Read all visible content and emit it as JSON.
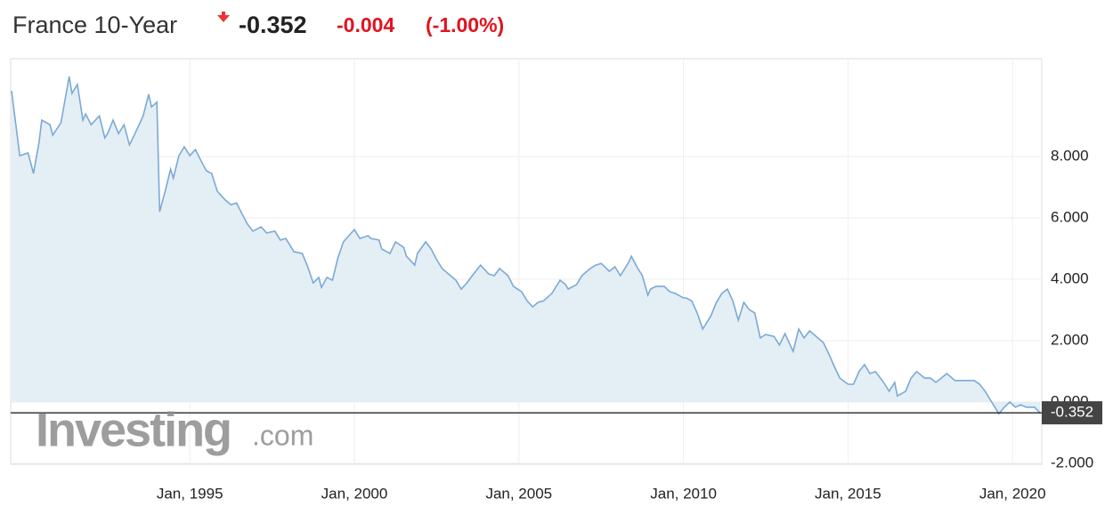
{
  "header": {
    "title": "France 10-Year",
    "price": "-0.352",
    "change": "-0.004",
    "change_percent": "(-1.00%)"
  },
  "watermark": {
    "brand": "Investing",
    "suffix": ".com"
  },
  "chart_data": {
    "type": "area-line",
    "x": [
      "1989-08",
      "1989-11",
      "1990-02",
      "1990-04",
      "1990-06",
      "1990-07",
      "1990-10",
      "1990-11",
      "1991-02",
      "1991-05",
      "1991-06",
      "1991-08",
      "1991-10",
      "1991-11",
      "1992-01",
      "1992-04",
      "1992-06",
      "1992-07",
      "1992-09",
      "1992-11",
      "1993-01",
      "1993-03",
      "1993-05",
      "1993-08",
      "1993-10",
      "1993-11",
      "1994-01",
      "1994-02",
      "1994-04",
      "1994-06",
      "1994-07",
      "1994-09",
      "1994-11",
      "1995-01",
      "1995-03",
      "1995-05",
      "1995-07",
      "1995-09",
      "1995-11",
      "1996-02",
      "1996-04",
      "1996-06",
      "1996-08",
      "1996-10",
      "1996-12",
      "1997-03",
      "1997-05",
      "1997-08",
      "1997-10",
      "1997-12",
      "1998-03",
      "1998-06",
      "1998-08",
      "1998-10",
      "1998-12",
      "1999-01",
      "1999-03",
      "1999-05",
      "1999-07",
      "1999-09",
      "1999-11",
      "2000-01",
      "2000-03",
      "2000-06",
      "2000-07",
      "2000-10",
      "2000-11",
      "2001-02",
      "2001-04",
      "2001-07",
      "2001-08",
      "2001-11",
      "2001-12",
      "2002-03",
      "2002-05",
      "2002-07",
      "2002-09",
      "2002-12",
      "2003-02",
      "2003-04",
      "2003-06",
      "2003-08",
      "2003-11",
      "2004-02",
      "2004-04",
      "2004-06",
      "2004-09",
      "2004-11",
      "2005-02",
      "2005-04",
      "2005-06",
      "2005-08",
      "2005-10",
      "2006-01",
      "2006-04",
      "2006-06",
      "2006-07",
      "2006-10",
      "2006-12",
      "2007-03",
      "2007-05",
      "2007-07",
      "2007-10",
      "2007-12",
      "2008-02",
      "2008-05",
      "2008-06",
      "2008-08",
      "2008-10",
      "2008-12",
      "2009-01",
      "2009-03",
      "2009-06",
      "2009-08",
      "2009-10",
      "2010-01",
      "2010-02",
      "2010-04",
      "2010-06",
      "2010-08",
      "2010-11",
      "2011-01",
      "2011-03",
      "2011-05",
      "2011-07",
      "2011-09",
      "2011-11",
      "2012-01",
      "2012-03",
      "2012-05",
      "2012-07",
      "2012-10",
      "2012-12",
      "2013-02",
      "2013-05",
      "2013-07",
      "2013-09",
      "2013-11",
      "2014-02",
      "2014-04",
      "2014-06",
      "2014-08",
      "2014-10",
      "2015-01",
      "2015-03",
      "2015-05",
      "2015-07",
      "2015-09",
      "2015-11",
      "2016-02",
      "2016-04",
      "2016-06",
      "2016-07",
      "2016-10",
      "2016-12",
      "2017-02",
      "2017-05",
      "2017-07",
      "2017-09",
      "2017-11",
      "2018-01",
      "2018-04",
      "2018-06",
      "2018-09",
      "2018-11",
      "2019-01",
      "2019-03",
      "2019-06",
      "2019-08",
      "2019-10",
      "2019-12",
      "2020-02",
      "2020-04",
      "2020-06",
      "2020-09",
      "2020-11"
    ],
    "series": [
      {
        "color": "#7aaad6",
        "fill": "#e4eef5",
        "values": [
          10.14,
          8.03,
          8.12,
          7.45,
          8.46,
          9.19,
          9.04,
          8.7,
          9.1,
          10.61,
          10.06,
          10.35,
          9.19,
          9.39,
          9.04,
          9.33,
          8.61,
          8.75,
          9.19,
          8.75,
          9.04,
          8.38,
          8.75,
          9.33,
          10.03,
          9.62,
          9.77,
          6.2,
          6.87,
          7.59,
          7.3,
          8.03,
          8.32,
          8.03,
          8.23,
          7.88,
          7.54,
          7.45,
          6.87,
          6.58,
          6.43,
          6.49,
          6.14,
          5.8,
          5.57,
          5.71,
          5.51,
          5.57,
          5.28,
          5.33,
          4.9,
          4.84,
          4.41,
          3.88,
          4.06,
          3.74,
          4.06,
          3.97,
          4.7,
          5.22,
          5.42,
          5.62,
          5.33,
          5.42,
          5.33,
          5.28,
          4.99,
          4.84,
          5.22,
          5.04,
          4.75,
          4.46,
          4.84,
          5.22,
          4.99,
          4.64,
          4.35,
          4.12,
          3.97,
          3.68,
          3.88,
          4.12,
          4.46,
          4.17,
          4.12,
          4.35,
          4.12,
          3.77,
          3.59,
          3.3,
          3.1,
          3.25,
          3.3,
          3.54,
          3.97,
          3.83,
          3.68,
          3.83,
          4.12,
          4.35,
          4.46,
          4.52,
          4.26,
          4.41,
          4.12,
          4.55,
          4.75,
          4.41,
          4.12,
          3.48,
          3.68,
          3.77,
          3.77,
          3.59,
          3.54,
          3.39,
          3.39,
          3.3,
          2.9,
          2.38,
          2.81,
          3.25,
          3.54,
          3.68,
          3.3,
          2.67,
          3.25,
          3.01,
          2.9,
          2.09,
          2.2,
          2.14,
          1.86,
          2.23,
          1.65,
          2.38,
          2.09,
          2.32,
          2.09,
          1.94,
          1.57,
          1.16,
          0.78,
          0.58,
          0.58,
          0.99,
          1.22,
          0.93,
          0.99,
          0.64,
          0.35,
          0.64,
          0.2,
          0.35,
          0.78,
          0.99,
          0.78,
          0.78,
          0.64,
          0.78,
          0.93,
          0.7,
          0.7,
          0.7,
          0.7,
          0.58,
          0.35,
          -0.09,
          -0.38,
          -0.17,
          0,
          -0.17,
          -0.09,
          -0.17,
          -0.17,
          -0.352
        ]
      }
    ],
    "last_value": -0.352,
    "xlim": [
      "1989-08",
      "2020-11"
    ],
    "xticks": [
      {
        "value": "1995-01",
        "label": "Jan, 1995"
      },
      {
        "value": "2000-01",
        "label": "Jan, 2000"
      },
      {
        "value": "2005-01",
        "label": "Jan, 2005"
      },
      {
        "value": "2010-01",
        "label": "Jan, 2010"
      },
      {
        "value": "2015-01",
        "label": "Jan, 2015"
      },
      {
        "value": "2020-01",
        "label": "Jan, 2020"
      }
    ],
    "ylim": [
      -2.03,
      11.19
    ],
    "yticks": [
      {
        "value": -2,
        "label": "-2.000"
      },
      {
        "value": 0,
        "label": "0.000"
      },
      {
        "value": 2,
        "label": "2.000"
      },
      {
        "value": 4,
        "label": "4.000"
      },
      {
        "value": 6,
        "label": "6.000"
      },
      {
        "value": 8,
        "label": "8.000"
      }
    ],
    "grid": true
  }
}
